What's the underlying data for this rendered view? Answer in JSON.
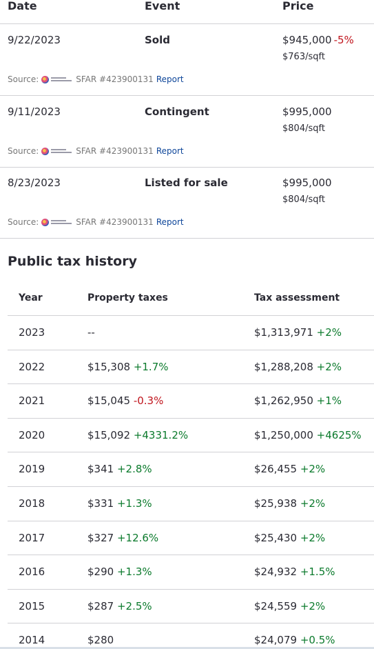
{
  "price_history": {
    "headers": {
      "date": "Date",
      "event": "Event",
      "price": "Price"
    },
    "rows": [
      {
        "date": "9/22/2023",
        "event": "Sold",
        "price": "$945,000",
        "change": "-5%",
        "sqft": "$763/sqft",
        "source_label": "Source:",
        "source_id": "SFAR #423900131",
        "report": "Report"
      },
      {
        "date": "9/11/2023",
        "event": "Contingent",
        "price": "$995,000",
        "change": "",
        "sqft": "$804/sqft",
        "source_label": "Source:",
        "source_id": "SFAR #423900131",
        "report": "Report"
      },
      {
        "date": "8/23/2023",
        "event": "Listed for sale",
        "price": "$995,000",
        "change": "",
        "sqft": "$804/sqft",
        "source_label": "Source:",
        "source_id": "SFAR #423900131",
        "report": "Report"
      }
    ]
  },
  "tax_history": {
    "title": "Public tax history",
    "headers": {
      "year": "Year",
      "taxes": "Property taxes",
      "assessment": "Tax assessment"
    },
    "rows": [
      {
        "year": "2023",
        "taxes": "--",
        "taxes_change": "",
        "taxes_dir": "",
        "assessment": "$1,313,971",
        "assessment_change": "+2%",
        "assessment_dir": "pos"
      },
      {
        "year": "2022",
        "taxes": "$15,308",
        "taxes_change": "+1.7%",
        "taxes_dir": "pos",
        "assessment": "$1,288,208",
        "assessment_change": "+2%",
        "assessment_dir": "pos"
      },
      {
        "year": "2021",
        "taxes": "$15,045",
        "taxes_change": "-0.3%",
        "taxes_dir": "neg",
        "assessment": "$1,262,950",
        "assessment_change": "+1%",
        "assessment_dir": "pos"
      },
      {
        "year": "2020",
        "taxes": "$15,092",
        "taxes_change": "+4331.2%",
        "taxes_dir": "pos",
        "assessment": "$1,250,000",
        "assessment_change": "+4625%",
        "assessment_dir": "pos"
      },
      {
        "year": "2019",
        "taxes": "$341",
        "taxes_change": "+2.8%",
        "taxes_dir": "pos",
        "assessment": "$26,455",
        "assessment_change": "+2%",
        "assessment_dir": "pos"
      },
      {
        "year": "2018",
        "taxes": "$331",
        "taxes_change": "+1.3%",
        "taxes_dir": "pos",
        "assessment": "$25,938",
        "assessment_change": "+2%",
        "assessment_dir": "pos"
      },
      {
        "year": "2017",
        "taxes": "$327",
        "taxes_change": "+12.6%",
        "taxes_dir": "pos",
        "assessment": "$25,430",
        "assessment_change": "+2%",
        "assessment_dir": "pos"
      },
      {
        "year": "2016",
        "taxes": "$290",
        "taxes_change": "+1.3%",
        "taxes_dir": "pos",
        "assessment": "$24,932",
        "assessment_change": "+1.5%",
        "assessment_dir": "pos"
      },
      {
        "year": "2015",
        "taxes": "$287",
        "taxes_change": "+2.5%",
        "taxes_dir": "pos",
        "assessment": "$24,559",
        "assessment_change": "+2%",
        "assessment_dir": "pos"
      },
      {
        "year": "2014",
        "taxes": "$280",
        "taxes_change": "",
        "taxes_dir": "",
        "assessment": "$24,079",
        "assessment_change": "+0.5%",
        "assessment_dir": "pos"
      }
    ]
  },
  "colors": {
    "positive": "#0b7a2c",
    "negative": "#c0141c",
    "link": "#0d4599",
    "divider": "#d1d1d5"
  },
  "icons": {
    "source_logo": "sfar-logo-icon"
  }
}
